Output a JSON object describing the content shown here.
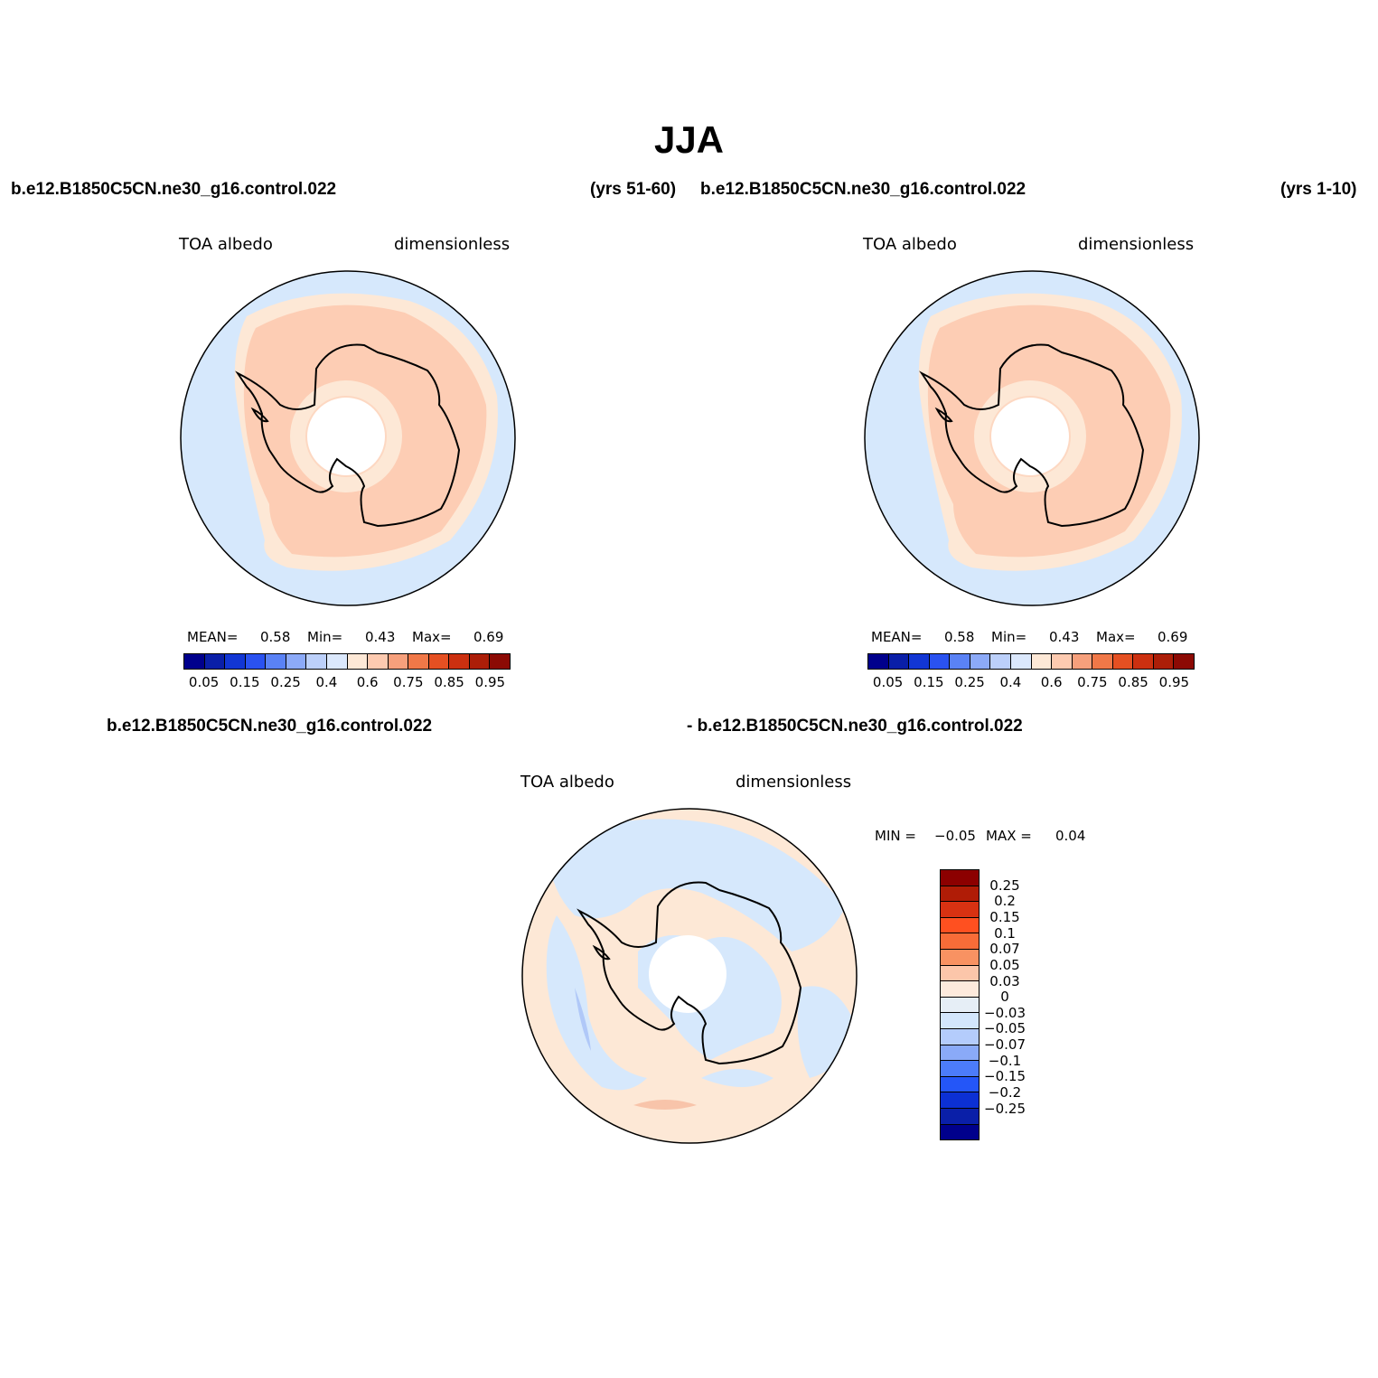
{
  "title": "JJA",
  "panels": {
    "top_left": {
      "case": "b.e12.B1850C5CN.ne30_g16.control.022",
      "years": "(yrs 51-60)",
      "variable": "TOA albedo",
      "units": "dimensionless",
      "mean_label": "MEAN=",
      "mean_value": "0.58",
      "min_label": "Min=",
      "min_value": "0.43",
      "max_label": "Max=",
      "max_value": "0.69"
    },
    "top_right": {
      "case": "b.e12.B1850C5CN.ne30_g16.control.022",
      "years": "(yrs 1-10)",
      "variable": "TOA albedo",
      "units": "dimensionless",
      "mean_label": "MEAN=",
      "mean_value": "0.58",
      "min_label": "Min=",
      "min_value": "0.43",
      "max_label": "Max=",
      "max_value": "0.69"
    },
    "bottom": {
      "case_left": "b.e12.B1850C5CN.ne30_g16.control.022",
      "case_right": "- b.e12.B1850C5CN.ne30_g16.control.022",
      "variable": "TOA albedo",
      "units": "dimensionless",
      "min_label": "MIN =",
      "min_value": "−0.05",
      "max_label": "MAX =",
      "max_value": "0.04"
    }
  },
  "colorbar_abs": {
    "colors": [
      "#00008c",
      "#0a1fa8",
      "#1236d4",
      "#2a52f0",
      "#5a82f5",
      "#8caaf8",
      "#bcd0fa",
      "#dbe8fc",
      "#fde8d6",
      "#fdcab0",
      "#f6a07c",
      "#f07848",
      "#e55022",
      "#cc3010",
      "#ac1e08",
      "#8c0a04"
    ],
    "tick_labels": [
      "0.05",
      "0.15",
      "0.25",
      "0.4",
      "0.6",
      "0.75",
      "0.85",
      "0.95"
    ]
  },
  "colorbar_diff": {
    "colors": [
      "#8c0000",
      "#b01c06",
      "#d83212",
      "#ff5020",
      "#f86c38",
      "#f89262",
      "#fcc6aa",
      "#fdeadc",
      "#e6eef6",
      "#d3e6fc",
      "#b4ccfc",
      "#8aaaf8",
      "#4c7cfa",
      "#2456f8",
      "#0c30d4",
      "#0a1fa8",
      "#00008c"
    ],
    "tick_labels": [
      "0.25",
      "0.2",
      "0.15",
      "0.1",
      "0.07",
      "0.05",
      "0.03",
      "0",
      "−0.03",
      "−0.05",
      "−0.07",
      "−0.1",
      "−0.15",
      "−0.2",
      "−0.25"
    ]
  },
  "map_colors": {
    "ocean_low": "#d6e8fc",
    "mid": "#fde8d6",
    "high": "#fdcdb4",
    "diff_neg": "#d6e8fc",
    "diff_pos": "#fde8d6",
    "diff_strong_neg": "#b0c8f8",
    "diff_strong_pos": "#f8c4aa",
    "coast": "#000000"
  }
}
